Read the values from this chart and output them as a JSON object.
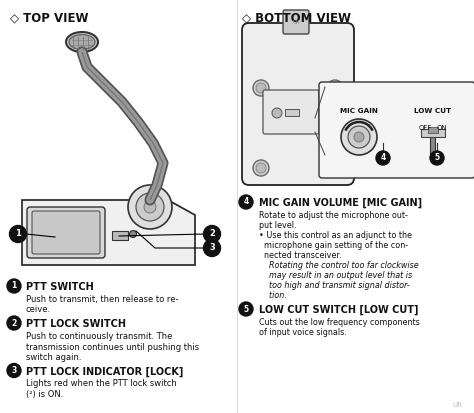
{
  "bg_color": "#ffffff",
  "title_left": "◇ TOP VIEW",
  "title_right": "◇ BOTTOM VIEW",
  "left_items": [
    {
      "num": "1",
      "title": "PTT SWITCH",
      "text": "Push to transmit, then release to re-\nceive."
    },
    {
      "num": "2",
      "title": "PTT LOCK SWITCH",
      "text": "Push to continuously transmit. The\ntransmission continues until pushing this\nswitch again."
    },
    {
      "num": "3",
      "title": "PTT LOCK INDICATOR [LOCK]",
      "text": "Lights red when the PTT lock switch\n(²) is ON."
    }
  ],
  "right_items": [
    {
      "num": "4",
      "title": "MIC GAIN VOLUME [MIC GAIN]",
      "text": "Rotate to adjust the microphone out-\nput level.\n• Use this control as an adjunct to the\n  microphone gain setting of the con-\n  nected transceiver.\n    Rotating the control too far clockwise\n    may result in an output level that is\n    too high and transmit signal distor-\n    tion."
    },
    {
      "num": "5",
      "title": "LOW CUT SWITCH [LOW CUT]",
      "text": "Cuts out the low frequency components\nof input voice signals."
    }
  ],
  "text_color": "#000000",
  "label_color": "#000000"
}
